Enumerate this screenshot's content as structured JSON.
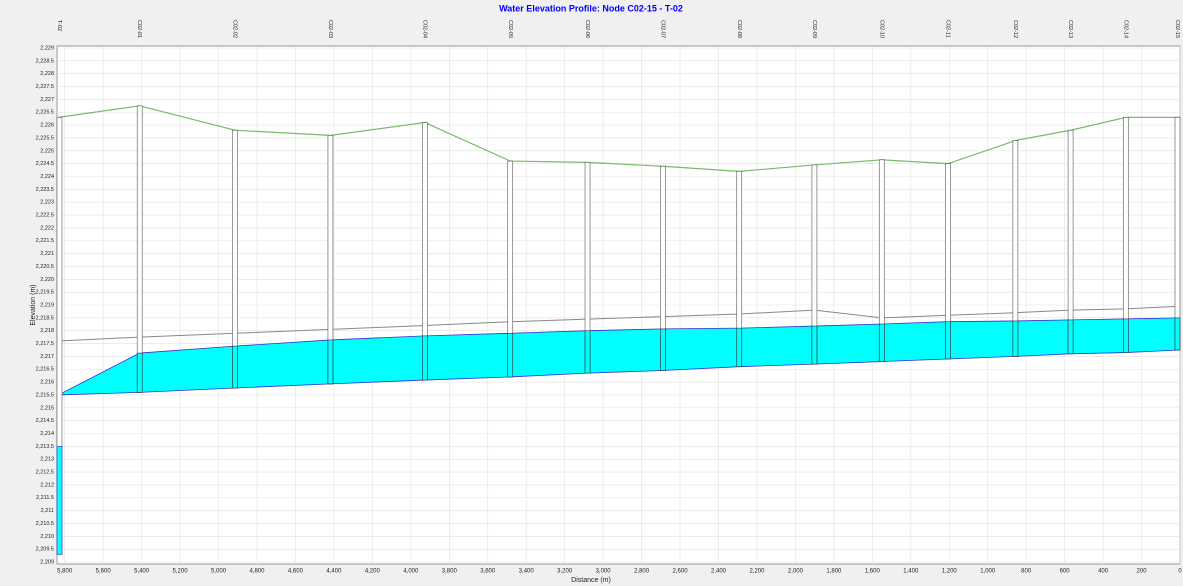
{
  "chart_data": {
    "type": "profile",
    "title": "Water Elevation Profile:  Node C02-15 - T-02",
    "xlabel": "Distance (m)",
    "ylabel": "Elevation (m)",
    "categories": [
      "T-02",
      "C02-01",
      "C02-02",
      "C02-03",
      "C02-04",
      "C02-05",
      "C02-06",
      "C02-07",
      "C02-08",
      "C02-09",
      "C02-10",
      "C02-11",
      "C02-12",
      "C02-13",
      "C02-14",
      "C02-15"
    ],
    "x": [
      5833,
      5410,
      4914,
      4418,
      3927,
      3483,
      3081,
      2689,
      2292,
      1901,
      1551,
      1206,
      856,
      569,
      282,
      0
    ],
    "ground": [
      2226.3,
      2226.75,
      2225.8,
      2225.6,
      2226.1,
      2224.6,
      2224.55,
      2224.4,
      2224.2,
      2224.45,
      2224.65,
      2224.5,
      2225.4,
      2225.8,
      2226.3,
      2226.3
    ],
    "crown": [
      2217.6,
      2217.75,
      2217.9,
      2218.05,
      2218.2,
      2218.35,
      2218.45,
      2218.55,
      2218.65,
      2218.8,
      2218.5,
      2218.6,
      2218.7,
      2218.8,
      2218.85,
      2218.95
    ],
    "water": [
      2215.5,
      2217.13,
      2217.4,
      2217.64,
      2217.8,
      2217.9,
      2218.0,
      2218.07,
      2218.1,
      2218.18,
      2218.26,
      2218.35,
      2218.38,
      2218.42,
      2218.46,
      2218.5
    ],
    "invert": [
      2215.5,
      2215.6,
      2215.77,
      2215.93,
      2216.08,
      2216.2,
      2216.35,
      2216.45,
      2216.6,
      2216.7,
      2216.8,
      2216.9,
      2217.0,
      2217.1,
      2217.15,
      2217.25
    ],
    "storage": {
      "bottom": 2209.3,
      "water": 2213.5
    },
    "colors": {
      "ground": "#77bb66",
      "crown": "#888888",
      "water": "#00ffff",
      "water_edge": "#3333cc",
      "node": "#ffffff",
      "title": "#0000ff"
    },
    "grid": true,
    "xlim": [
      5840,
      0
    ],
    "xticks": [
      {
        "value": 5800,
        "label": "5,800"
      },
      {
        "value": 5600,
        "label": "5,600"
      },
      {
        "value": 5400,
        "label": "5,400"
      },
      {
        "value": 5200,
        "label": "5,200"
      },
      {
        "value": 5000,
        "label": "5,000"
      },
      {
        "value": 4800,
        "label": "4,800"
      },
      {
        "value": 4600,
        "label": "4,600"
      },
      {
        "value": 4400,
        "label": "4,400"
      },
      {
        "value": 4200,
        "label": "4,200"
      },
      {
        "value": 4000,
        "label": "4,000"
      },
      {
        "value": 3800,
        "label": "3,800"
      },
      {
        "value": 3600,
        "label": "3,600"
      },
      {
        "value": 3400,
        "label": "3,400"
      },
      {
        "value": 3200,
        "label": "3,200"
      },
      {
        "value": 3000,
        "label": "3,000"
      },
      {
        "value": 2800,
        "label": "2,800"
      },
      {
        "value": 2600,
        "label": "2,600"
      },
      {
        "value": 2400,
        "label": "2,400"
      },
      {
        "value": 2200,
        "label": "2,200"
      },
      {
        "value": 2000,
        "label": "2,000"
      },
      {
        "value": 1800,
        "label": "1,800"
      },
      {
        "value": 1600,
        "label": "1,600"
      },
      {
        "value": 1400,
        "label": "1,400"
      },
      {
        "value": 1200,
        "label": "1,200"
      },
      {
        "value": 1000,
        "label": "1,000"
      },
      800,
      600,
      400,
      200,
      0
    ],
    "ylim": [
      2209,
      2229
    ],
    "yticks": [
      {
        "value": 2209,
        "label": "2,209"
      },
      {
        "value": 2209.5,
        "label": "2,209.5"
      },
      {
        "value": 2210,
        "label": "2,210"
      },
      {
        "value": 2210.5,
        "label": "2,210.5"
      },
      {
        "value": 2211,
        "label": "2,211"
      },
      {
        "value": 2211.5,
        "label": "2,211.5"
      },
      {
        "value": 2212,
        "label": "2,212"
      },
      {
        "value": 2212.5,
        "label": "2,212.5"
      },
      {
        "value": 2213,
        "label": "2,213"
      },
      {
        "value": 2213.5,
        "label": "2,213.5"
      },
      {
        "value": 2214,
        "label": "2,214"
      },
      {
        "value": 2214.5,
        "label": "2,214.5"
      },
      {
        "value": 2215,
        "label": "2,215"
      },
      {
        "value": 2215.5,
        "label": "2,215.5"
      },
      {
        "value": 2216,
        "label": "2,216"
      },
      {
        "value": 2216.5,
        "label": "2,216.5"
      },
      {
        "value": 2217,
        "label": "2,217"
      },
      {
        "value": 2217.5,
        "label": "2,217.5"
      },
      {
        "value": 2218,
        "label": "2,218"
      },
      {
        "value": 2218.5,
        "label": "2,218.5"
      },
      {
        "value": 2219,
        "label": "2,219"
      },
      {
        "value": 2219.5,
        "label": "2,219.5"
      },
      {
        "value": 2220,
        "label": "2,220"
      },
      {
        "value": 2220.5,
        "label": "2,220.5"
      },
      {
        "value": 2221,
        "label": "2,221"
      },
      {
        "value": 2221.5,
        "label": "2,221.5"
      },
      {
        "value": 2222,
        "label": "2,222"
      },
      {
        "value": 2222.5,
        "label": "2,222.5"
      },
      {
        "value": 2223,
        "label": "2,223"
      },
      {
        "value": 2223.5,
        "label": "2,223.5"
      },
      {
        "value": 2224,
        "label": "2,224"
      },
      {
        "value": 2224.5,
        "label": "2,224.5"
      },
      {
        "value": 2225,
        "label": "2,225"
      },
      {
        "value": 2225.5,
        "label": "2,225.5"
      },
      {
        "value": 2226,
        "label": "2,226"
      },
      {
        "value": 2226.5,
        "label": "2,226.5"
      },
      {
        "value": 2227,
        "label": "2,227"
      },
      {
        "value": 2227.5,
        "label": "2,227.5"
      },
      {
        "value": 2228,
        "label": "2,228"
      },
      {
        "value": 2228.5,
        "label": "2,228.5"
      },
      {
        "value": 2229,
        "label": "2,229"
      }
    ]
  }
}
